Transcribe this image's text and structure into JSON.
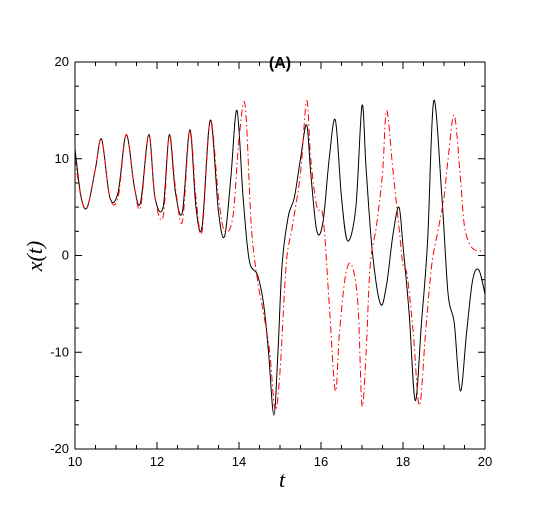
{
  "chart_data": {
    "type": "line",
    "title": "(A)",
    "xlabel": "t",
    "ylabel": "x(t)",
    "xlim": [
      10,
      20
    ],
    "ylim": [
      -20,
      20
    ],
    "xticks": [
      10,
      12,
      14,
      16,
      18,
      20
    ],
    "yticks": [
      -20,
      -10,
      0,
      10,
      20
    ],
    "grid": false,
    "legend": "none",
    "series": [
      {
        "style": "solid",
        "color": "#000000",
        "x": [
          10.0,
          10.15,
          10.3,
          10.5,
          10.65,
          10.85,
          11.05,
          11.25,
          11.45,
          11.6,
          11.8,
          11.95,
          12.15,
          12.3,
          12.45,
          12.62,
          12.8,
          12.95,
          13.1,
          13.3,
          13.5,
          13.65,
          13.8,
          13.95,
          14.1,
          14.25,
          14.45,
          14.6,
          14.72,
          14.85,
          14.95,
          15.05,
          15.2,
          15.35,
          15.5,
          15.65,
          15.75,
          15.9,
          16.05,
          16.2,
          16.35,
          16.5,
          16.65,
          16.85,
          17.0,
          17.1,
          17.25,
          17.45,
          17.6,
          17.75,
          17.9,
          18.0,
          18.15,
          18.3,
          18.45,
          18.6,
          18.75,
          18.95,
          19.1,
          19.25,
          19.4,
          19.55,
          19.7,
          19.85,
          20.0
        ],
        "y": [
          11.0,
          6.0,
          5.0,
          9.0,
          12.0,
          6.0,
          6.5,
          12.5,
          7.0,
          5.5,
          12.5,
          6.0,
          5.0,
          12.5,
          6.5,
          4.5,
          13.0,
          5.0,
          3.0,
          14.0,
          4.5,
          2.0,
          8.0,
          15.0,
          6.0,
          -0.5,
          -2.0,
          -5.0,
          -10.0,
          -16.5,
          -10.0,
          -1.0,
          4.0,
          6.0,
          10.0,
          13.5,
          8.5,
          2.5,
          3.5,
          10.0,
          14.0,
          6.0,
          1.5,
          5.0,
          15.5,
          9.0,
          0.5,
          -5.0,
          -3.0,
          2.0,
          5.0,
          1.0,
          -6.0,
          -15.0,
          -7.0,
          1.5,
          16.0,
          6.0,
          -4.0,
          -7.0,
          -14.0,
          -8.0,
          -2.5,
          -1.5,
          -4.0
        ]
      },
      {
        "style": "dashdot",
        "color": "#ff0000",
        "x": [
          10.0,
          10.15,
          10.3,
          10.5,
          10.65,
          10.85,
          11.05,
          11.25,
          11.45,
          11.6,
          11.8,
          11.95,
          12.15,
          12.3,
          12.45,
          12.62,
          12.8,
          12.95,
          13.1,
          13.3,
          13.5,
          13.65,
          13.85,
          14.0,
          14.15,
          14.3,
          14.45,
          14.6,
          14.75,
          14.88,
          15.0,
          15.15,
          15.3,
          15.5,
          15.65,
          15.75,
          15.9,
          16.05,
          16.2,
          16.35,
          16.45,
          16.6,
          16.75,
          16.9,
          17.0,
          17.1,
          17.2,
          17.35,
          17.5,
          17.6,
          17.75,
          17.9,
          18.0,
          18.1,
          18.25,
          18.4,
          18.55,
          18.7,
          18.85,
          19.0,
          19.1,
          19.25,
          19.4,
          19.5,
          19.65,
          19.8,
          19.95
        ],
        "y": [
          10.0,
          6.0,
          5.0,
          9.0,
          12.0,
          6.0,
          6.0,
          12.5,
          7.0,
          5.0,
          12.5,
          6.0,
          4.0,
          12.5,
          7.0,
          3.5,
          13.0,
          6.0,
          2.5,
          14.0,
          6.0,
          2.5,
          4.0,
          12.0,
          15.5,
          3.0,
          -2.5,
          -6.0,
          -10.0,
          -16.0,
          -12.0,
          -1.0,
          3.0,
          8.5,
          16.0,
          10.0,
          5.0,
          4.0,
          -5.0,
          -14.0,
          -8.0,
          -2.0,
          -1.0,
          -5.0,
          -15.5,
          -10.0,
          -1.0,
          3.0,
          8.5,
          15.0,
          9.0,
          3.0,
          -1.0,
          -2.0,
          -8.0,
          -15.5,
          -8.0,
          -1.0,
          2.5,
          6.0,
          10.0,
          14.5,
          8.0,
          3.0,
          1.0,
          0.5,
          0.5
        ]
      }
    ]
  }
}
